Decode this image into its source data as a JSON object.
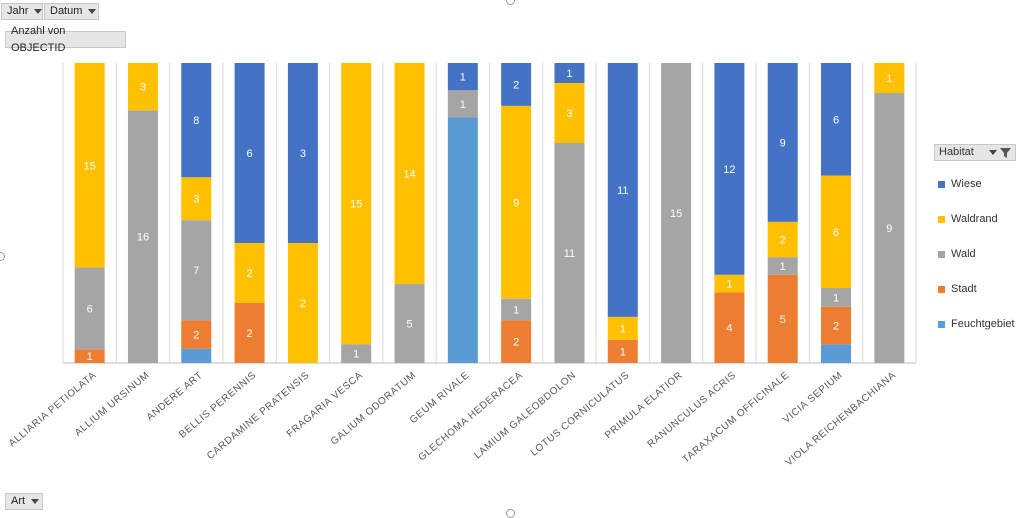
{
  "filters": {
    "jahr": "Jahr",
    "datum": "Datum"
  },
  "value_field": "Anzahl von OBJECTID",
  "axis_field": "Art",
  "legend_field": "Habitat",
  "chart_data": {
    "type": "bar",
    "stacked": true,
    "normalized_100_percent": true,
    "categories": [
      "ALLIARIA PETIOLATA",
      "ALLIUM URSINUM",
      "ANDERE ART",
      "BELLIS PERENNIS",
      "CARDAMINE PRATENSIS",
      "FRAGARIA VESCA",
      "GALIUM ODORATUM",
      "GEUM RIVALE",
      "GLECHOMA HEDERACEA",
      "LAMIUM GALEOBDOLON",
      "LOTUS CORNICULATUS",
      "PRIMULA ELATIOR",
      "RANUNCULUS ACRIS",
      "TARAXACUM OFFICINALE",
      "VICIA SEPIUM",
      "VIOLA REICHENBACHIANA"
    ],
    "series": [
      {
        "name": "Feuchtgebiet",
        "color": "#5b9bd5",
        "values": [
          0,
          0,
          1,
          0,
          0,
          0,
          0,
          9,
          0,
          0,
          0,
          0,
          0,
          0,
          1,
          0
        ],
        "labels": [
          "",
          "",
          "",
          "",
          "",
          "",
          "",
          "",
          "",
          "",
          "",
          "",
          "",
          "",
          "",
          ""
        ]
      },
      {
        "name": "Stadt",
        "color": "#ed7d31",
        "values": [
          1,
          0,
          2,
          2,
          0,
          0,
          0,
          0,
          2,
          0,
          1,
          0,
          4,
          5,
          2,
          0
        ],
        "labels": [
          "1",
          "",
          "2",
          "2",
          "",
          "",
          "",
          "",
          "2",
          "",
          "1",
          "",
          "4",
          "5",
          "2",
          ""
        ]
      },
      {
        "name": "Wald",
        "color": "#a5a5a5",
        "values": [
          6,
          16,
          7,
          0,
          0,
          1,
          5,
          1,
          1,
          11,
          0,
          15,
          0,
          1,
          1,
          9
        ],
        "labels": [
          "6",
          "16",
          "7",
          "",
          "",
          "1",
          "5",
          "1",
          "1",
          "11",
          "",
          "15",
          "",
          "1",
          "1",
          "9"
        ]
      },
      {
        "name": "Waldrand",
        "color": "#ffc000",
        "values": [
          15,
          3,
          3,
          2,
          2,
          15,
          14,
          0,
          9,
          3,
          1,
          0,
          1,
          2,
          6,
          1
        ],
        "labels": [
          "15",
          "3",
          "3",
          "2",
          "2",
          "15",
          "14",
          "",
          "9",
          "3",
          "1",
          "",
          "1",
          "2",
          "6",
          "1"
        ]
      },
      {
        "name": "Wiese",
        "color": "#4472c4",
        "values": [
          0,
          0,
          8,
          6,
          3,
          0,
          0,
          1,
          2,
          1,
          11,
          0,
          12,
          9,
          6,
          0
        ],
        "labels": [
          "",
          "",
          "8",
          "6",
          "3",
          "",
          "",
          "1",
          "2",
          "1",
          "11",
          "",
          "12",
          "9",
          "6",
          ""
        ]
      }
    ],
    "legend_order": [
      "Wiese",
      "Waldrand",
      "Wald",
      "Stadt",
      "Feuchtgebiet"
    ],
    "grid": "vertical",
    "legend_position": "right"
  }
}
